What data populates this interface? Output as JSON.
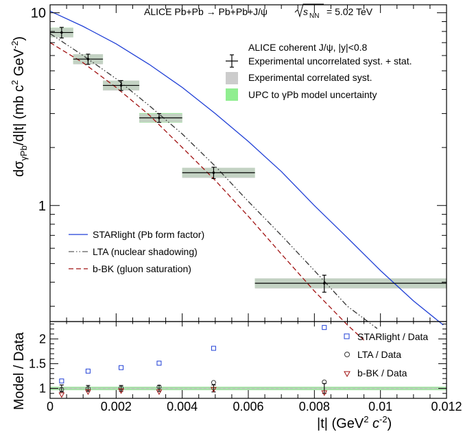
{
  "chart_data": [
    {
      "type": "line",
      "title": "ALICE Pb+Pb → Pb+Pb+J/ψ",
      "energy_label": "= 5.02 TeV",
      "energy_symbol": "s",
      "energy_subscript": "NN",
      "ylabel": "dσ",
      "ylabel_sub": "γPb",
      "ylabel_rest": "/d|t| (mb c",
      "ylabel_sup1": "2",
      "ylabel_mid": " GeV",
      "ylabel_sup2": "-2",
      "ylabel_close": ")",
      "yscale": "log",
      "ylim": [
        0.25,
        11
      ],
      "xlim": [
        0,
        0.012
      ],
      "y_ticks": [
        1,
        10
      ],
      "y_tick_labels": [
        "1",
        "10"
      ],
      "legend_title": "ALICE coherent J/ψ, |y|<0.8",
      "legend_top": [
        {
          "label": "Experimental uncorrelated syst. + stat.",
          "marker": "errorbar"
        },
        {
          "label": "Experimental correlated syst.",
          "marker": "box",
          "color": "#cccccc"
        },
        {
          "label": "UPC to γPb model uncertainty",
          "marker": "box",
          "color": "#90ee90"
        }
      ],
      "legend_models": [
        {
          "label": "STARlight (Pb form factor)",
          "color": "#1f3fd6",
          "dash": "solid"
        },
        {
          "label": "LTA (nuclear shadowing)",
          "color": "#333333",
          "dash": "dashdot"
        },
        {
          "label": "b-BK (gluon saturation)",
          "color": "#a01010",
          "dash": "dashed"
        }
      ],
      "data": [
        {
          "x": 0.00035,
          "xlo": 0.0,
          "xhi": 0.0007,
          "y": 7.9,
          "err": 0.5,
          "corr": 0.45
        },
        {
          "x": 0.00115,
          "xlo": 0.0007,
          "xhi": 0.0016,
          "y": 5.75,
          "err": 0.35,
          "corr": 0.35
        },
        {
          "x": 0.00215,
          "xlo": 0.0016,
          "xhi": 0.0027,
          "y": 4.2,
          "err": 0.25,
          "corr": 0.25
        },
        {
          "x": 0.0033,
          "xlo": 0.0027,
          "xhi": 0.004,
          "y": 2.85,
          "err": 0.15,
          "corr": 0.15
        },
        {
          "x": 0.00495,
          "xlo": 0.004,
          "xhi": 0.0062,
          "y": 1.48,
          "err": 0.1,
          "corr": 0.09
        },
        {
          "x": 0.0083,
          "xlo": 0.0062,
          "xhi": 0.0121,
          "y": 0.395,
          "err": 0.04,
          "corr": 0.024
        }
      ],
      "models": {
        "starlight": {
          "x": [
            0,
            0.001,
            0.002,
            0.003,
            0.004,
            0.005,
            0.006,
            0.007,
            0.008,
            0.009,
            0.01,
            0.011,
            0.0119
          ],
          "y": [
            10.2,
            8.5,
            6.9,
            5.4,
            4.1,
            3.0,
            2.15,
            1.5,
            1.0,
            0.68,
            0.46,
            0.32,
            0.24
          ]
        },
        "lta": {
          "x": [
            0,
            0.001,
            0.002,
            0.003,
            0.004,
            0.005,
            0.006,
            0.007,
            0.008,
            0.009,
            0.0099
          ],
          "y": [
            7.8,
            6.0,
            4.55,
            3.3,
            2.35,
            1.6,
            1.05,
            0.7,
            0.46,
            0.3,
            0.23
          ]
        },
        "bbk": {
          "x": [
            0,
            0.001,
            0.002,
            0.003,
            0.004,
            0.005,
            0.006,
            0.007,
            0.008,
            0.009,
            0.0095
          ],
          "y": [
            7.0,
            5.5,
            4.1,
            2.95,
            2.0,
            1.35,
            0.88,
            0.56,
            0.36,
            0.24,
            0.2
          ]
        }
      }
    },
    {
      "type": "scatter",
      "ylabel": "Model / Data",
      "xlabel_open": "|t| (GeV",
      "xlabel_sup1": "2",
      "xlabel_mid": " c",
      "xlabel_sup2": "-2",
      "xlabel_close": ")",
      "ylim": [
        0.8,
        2.35
      ],
      "xlim": [
        0,
        0.012
      ],
      "x_ticks": [
        0,
        0.002,
        0.004,
        0.006,
        0.008,
        0.01,
        0.012
      ],
      "x_tick_labels": [
        "0",
        "0.002",
        "0.004",
        "0.006",
        "0.008",
        "0.01",
        "0.012"
      ],
      "y_ticks": [
        1,
        1.5,
        2
      ],
      "y_tick_labels": [
        "1",
        "1.5",
        "2"
      ],
      "band": [
        0.965,
        1.035
      ],
      "series": [
        {
          "name": "STARlight / Data",
          "marker": "square",
          "color": "#1f3fd6",
          "x": [
            0.00035,
            0.00115,
            0.00215,
            0.0033,
            0.00495,
            0.0083
          ],
          "y": [
            1.15,
            1.35,
            1.42,
            1.51,
            1.81,
            2.23
          ]
        },
        {
          "name": "LTA / Data",
          "marker": "circle",
          "color": "#333333",
          "x": [
            0.00035,
            0.00115,
            0.00215,
            0.0033,
            0.00495,
            0.0083
          ],
          "y": [
            0.98,
            1.0,
            1.01,
            1.03,
            1.12,
            1.13
          ]
        },
        {
          "name": "b-BK / Data",
          "marker": "triangle",
          "color": "#a01010",
          "x": [
            0.00035,
            0.00115,
            0.00215,
            0.0033,
            0.00495,
            0.0083
          ],
          "y": [
            0.87,
            0.93,
            0.95,
            0.93,
            0.98,
            0.91
          ]
        }
      ],
      "data_errors": [
        {
          "x": 0.00035,
          "err": 0.07
        },
        {
          "x": 0.00115,
          "err": 0.06
        },
        {
          "x": 0.00215,
          "err": 0.06
        },
        {
          "x": 0.0033,
          "err": 0.06
        },
        {
          "x": 0.00495,
          "err": 0.07
        },
        {
          "x": 0.0083,
          "err": 0.1
        }
      ]
    }
  ]
}
